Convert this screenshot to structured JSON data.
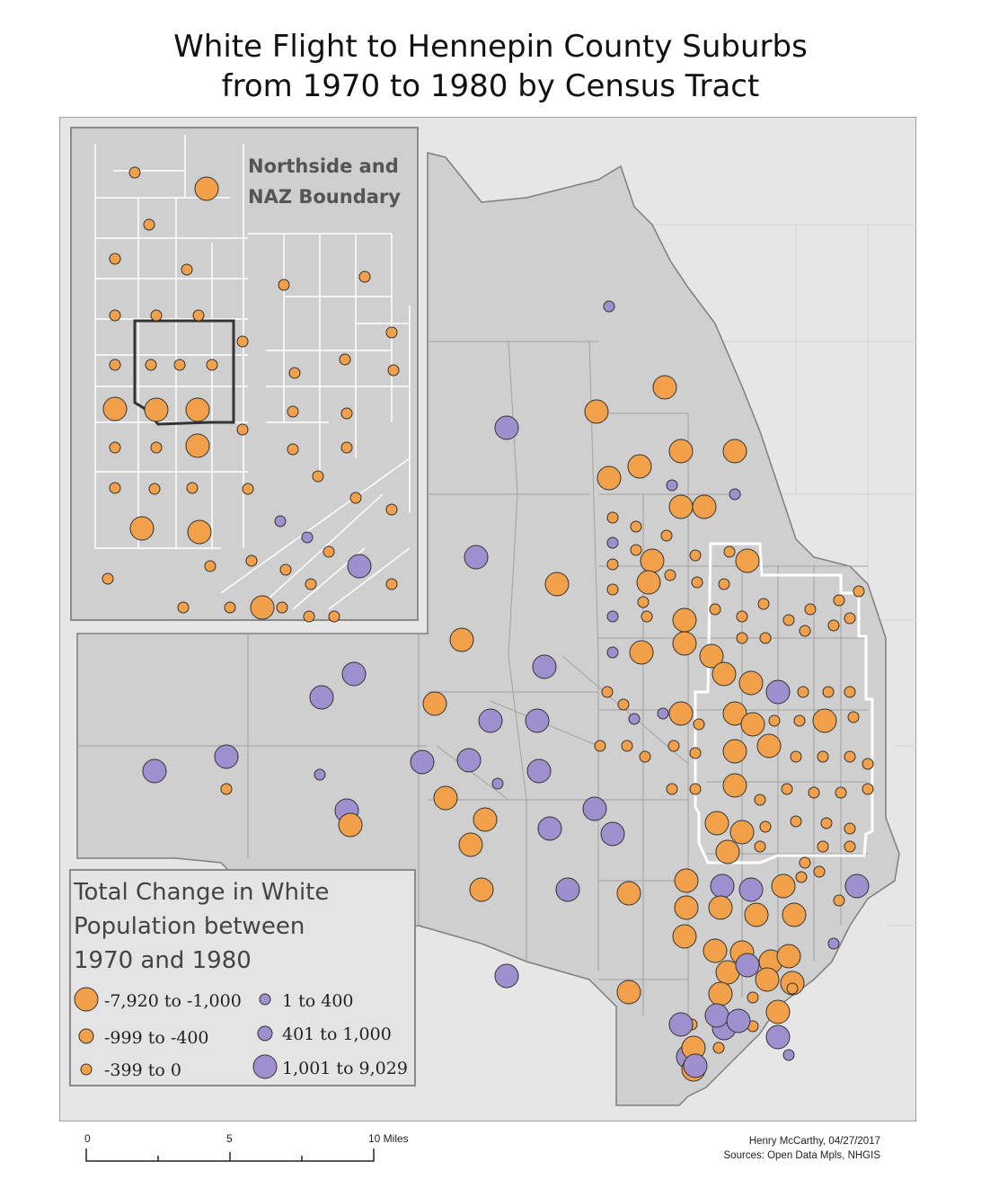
{
  "title": {
    "line1": "White Flight to Hennepin County Suburbs",
    "line2": "from 1970 to 1980 by Census Tract"
  },
  "inset": {
    "title_line1": "Northside and",
    "title_line2": "NAZ Boundary"
  },
  "legend": {
    "title_line1": "Total Change in White",
    "title_line2": "Population between",
    "title_line3": "1970 and 1980",
    "items": [
      {
        "label": "-7,920 to -1,000",
        "color": "#f2a04a",
        "size": "large"
      },
      {
        "label": "-999 to -400",
        "color": "#f2a04a",
        "size": "medium"
      },
      {
        "label": "-399 to 0",
        "color": "#f2a04a",
        "size": "small"
      },
      {
        "label": "1 to 400",
        "color": "#9e8fce",
        "size": "small"
      },
      {
        "label": "401 to 1,000",
        "color": "#9e8fce",
        "size": "medium"
      },
      {
        "label": "1,001 to 9,029",
        "color": "#9e8fce",
        "size": "large"
      }
    ]
  },
  "scale": {
    "ticks": [
      "0",
      "5",
      "10 Miles"
    ]
  },
  "credit": {
    "author": "Henry McCarthy, 04/27/2017",
    "sources": "Sources: Open Data Mpls, NHGIS"
  },
  "colors": {
    "loss": "#f2a04a",
    "gain": "#9e8fce",
    "county_fill": "#cfcfcf",
    "outside_fill": "#e6e6e6",
    "tract_line": "#9a9a9a",
    "boundary": "#ffffff"
  },
  "map_data": {
    "classes": [
      "-7,920 to -1,000",
      "-999 to -400",
      "-399 to 0",
      "1 to 400",
      "401 to 1,000",
      "1,001 to 9,029"
    ]
  }
}
